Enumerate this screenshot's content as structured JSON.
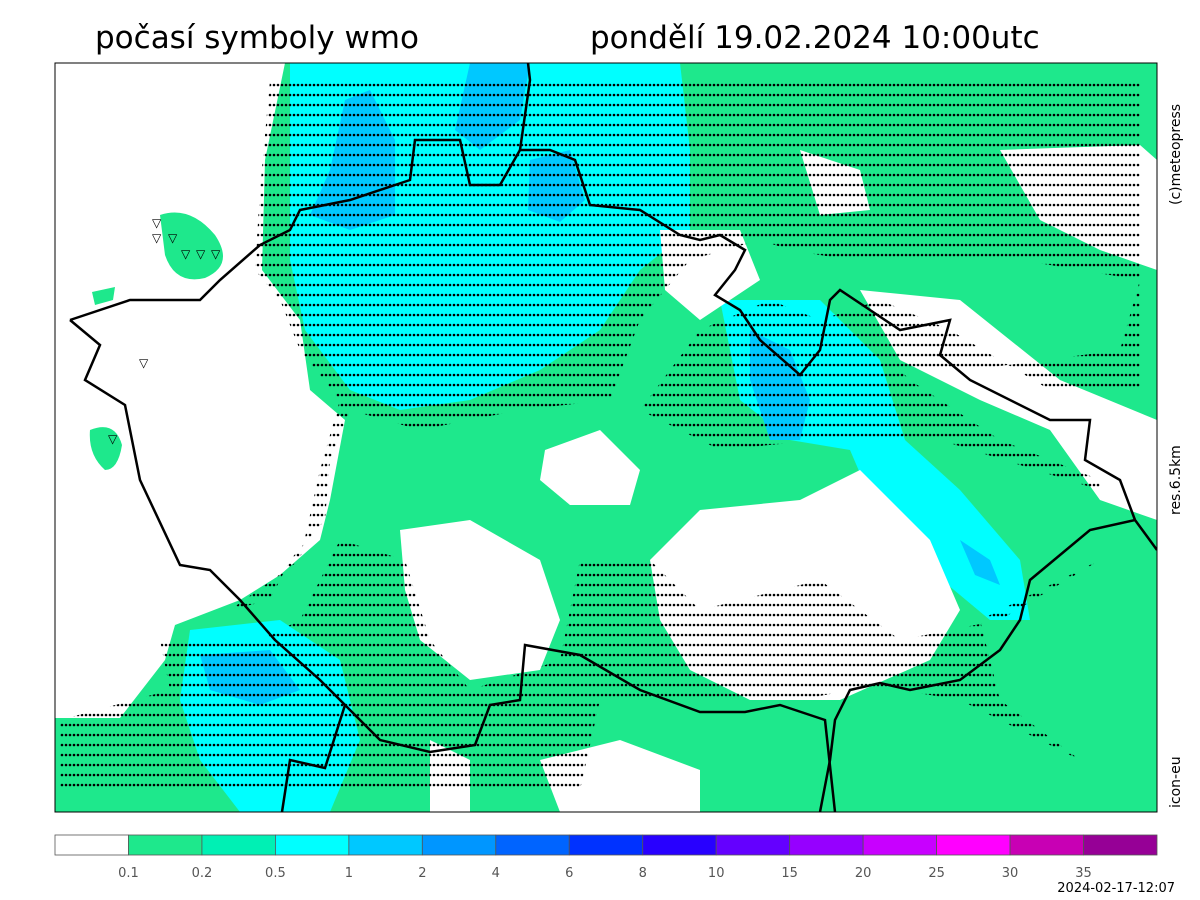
{
  "header": {
    "title": "počasí symboly wmo",
    "datetime": "pondělí 19.02.2024 10:00utc"
  },
  "side_labels": {
    "copyright": "(c)meteopress",
    "resolution": "res.6.5km",
    "model": "icon-eu"
  },
  "colorbar": {
    "colors": [
      "#ffffff",
      "#1ee88c",
      "#00f0b4",
      "#00ffff",
      "#00c8ff",
      "#0096ff",
      "#0064ff",
      "#0032ff",
      "#2800ff",
      "#6400ff",
      "#9600ff",
      "#c800ff",
      "#ff00ff",
      "#c800b4",
      "#960096"
    ],
    "labels": [
      0.1,
      0.2,
      0.5,
      1,
      2,
      4,
      6,
      8,
      10,
      15,
      20,
      25,
      30,
      35
    ]
  },
  "footer": {
    "timestamp": "2024-02-17-12:07"
  }
}
